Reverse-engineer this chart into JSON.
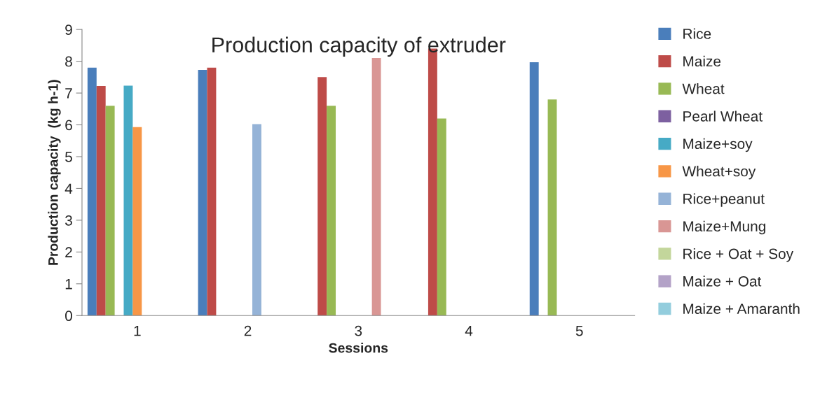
{
  "chart_data": {
    "type": "bar",
    "title": "Production capacity of extruder",
    "xlabel": "Sessions",
    "ylabel": "Production capacity  (kg h-1)",
    "categories": [
      "1",
      "2",
      "3",
      "4",
      "5"
    ],
    "series": [
      {
        "name": "Rice",
        "color": "#4a7ebb",
        "values": [
          7.8,
          7.73,
          null,
          null,
          7.97
        ]
      },
      {
        "name": "Maize",
        "color": "#be4b48",
        "values": [
          7.22,
          7.8,
          7.5,
          8.4,
          null
        ]
      },
      {
        "name": "Wheat",
        "color": "#98b954",
        "values": [
          6.6,
          null,
          6.6,
          6.2,
          6.8
        ]
      },
      {
        "name": "Pearl Wheat",
        "color": "#7d60a0",
        "values": [
          null,
          null,
          null,
          null,
          null
        ]
      },
      {
        "name": "Maize+soy",
        "color": "#46aac5",
        "values": [
          7.23,
          null,
          null,
          null,
          null
        ]
      },
      {
        "name": "Wheat+soy",
        "color": "#f79646",
        "values": [
          5.93,
          null,
          null,
          null,
          null
        ]
      },
      {
        "name": "Rice+peanut",
        "color": "#95b3d7",
        "values": [
          null,
          6.02,
          null,
          null,
          null
        ]
      },
      {
        "name": "Maize+Mung",
        "color": "#d99694",
        "values": [
          null,
          null,
          8.1,
          null,
          null
        ]
      },
      {
        "name": "Rice + Oat + Soy",
        "color": "#c3d69b",
        "values": [
          null,
          null,
          null,
          null,
          null
        ]
      },
      {
        "name": "Maize + Oat",
        "color": "#b3a2c7",
        "values": [
          null,
          null,
          null,
          null,
          null
        ]
      },
      {
        "name": "Maize + Amaranth",
        "color": "#93cddd",
        "values": [
          null,
          null,
          null,
          null,
          null
        ]
      }
    ],
    "ylim": [
      0,
      9
    ],
    "yticks": [
      0,
      1,
      2,
      3,
      4,
      5,
      6,
      7,
      8,
      9
    ],
    "grid": false,
    "legend": "right"
  }
}
